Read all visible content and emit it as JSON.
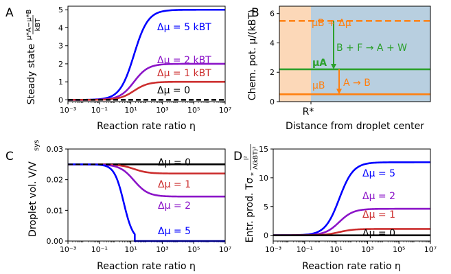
{
  "chart_data": [
    {
      "panel": "A",
      "type": "line",
      "xlabel": "Reaction rate ratio η",
      "ylabel": "Steady state (μA*−μB*)/kBT",
      "xscale": "log",
      "xlim": [
        0.001,
        10000000
      ],
      "ylim": [
        -0.1,
        5.2
      ],
      "xticks": [
        "10⁻³",
        "10⁻¹",
        "10¹",
        "10³",
        "10⁵",
        "10⁷"
      ],
      "yticks": [
        "0",
        "1",
        "2",
        "3",
        "4",
        "5"
      ],
      "series": [
        {
          "name": "Δμ = 5 k_BT",
          "color": "#0000ff",
          "plateau": 5,
          "midpoint_log10": 1.2
        },
        {
          "name": "Δμ = 2 k_BT",
          "color": "#8b14c8",
          "plateau": 2,
          "midpoint_log10": 1.2
        },
        {
          "name": "Δμ = 1 k_BT",
          "color": "#cc2e2e",
          "plateau": 1,
          "midpoint_log10": 1.2
        },
        {
          "name": "Δμ = 0",
          "color": "#000000",
          "plateau": 0,
          "midpoint_log10": 1.2
        }
      ]
    },
    {
      "panel": "B",
      "type": "diagram",
      "xlabel": "Distance from droplet center",
      "ylabel": "Chem. pot. μ/(kBT)",
      "ylim": [
        0,
        6.5
      ],
      "yticks": [
        "0",
        "2",
        "4",
        "6"
      ],
      "xtick": "R*",
      "levels": {
        "muB_plus_dmu": 5.5,
        "muA": 2.2,
        "muB": 0.5
      },
      "level_labels": {
        "muB_plus_dmu": "μB + Δμ",
        "muA": "μA",
        "muB": "μB"
      },
      "reactions": [
        "B + F → A + W",
        "A → B"
      ],
      "colors": {
        "inside": "#fcd8b8",
        "outside": "#b8cfe0",
        "orange": "#ff7f0e",
        "green": "#2ca02c"
      }
    },
    {
      "panel": "C",
      "type": "line",
      "xlabel": "Reaction rate ratio η",
      "ylabel": "Droplet vol. V/Vsys",
      "xscale": "log",
      "xlim": [
        0.001,
        10000000
      ],
      "ylim": [
        0.0,
        0.03
      ],
      "xticks": [
        "10⁻³",
        "10⁻¹",
        "10¹",
        "10³",
        "10⁵",
        "10⁷"
      ],
      "yticks": [
        "0.00",
        "0.01",
        "0.02",
        "0.03"
      ],
      "start_value": 0.025,
      "series": [
        {
          "name": "Δμ = 0",
          "color": "#000000",
          "plateau": 0.025
        },
        {
          "name": "Δμ = 1",
          "color": "#cc2e2e",
          "plateau": 0.022
        },
        {
          "name": "Δμ = 2",
          "color": "#8b14c8",
          "plateau": 0.0145
        },
        {
          "name": "Δμ = 5",
          "color": "#0000ff",
          "plateau": 0.0
        }
      ]
    },
    {
      "panel": "D",
      "type": "line",
      "xlabel": "Reaction rate ratio η",
      "ylabel": "Entr. prod. Tσ* l²/Λ(kBT)²",
      "xscale": "log",
      "xlim": [
        0.001,
        10000000
      ],
      "ylim": [
        -1,
        15
      ],
      "xticks": [
        "10⁻³",
        "10⁻¹",
        "10¹",
        "10³",
        "10⁵",
        "10⁷"
      ],
      "yticks": [
        "0",
        "5",
        "10",
        "15"
      ],
      "series": [
        {
          "name": "Δμ = 5",
          "color": "#0000ff",
          "plateau": 12.7
        },
        {
          "name": "Δμ = 2",
          "color": "#8b14c8",
          "plateau": 4.6
        },
        {
          "name": "Δμ = 1",
          "color": "#cc2e2e",
          "plateau": 1.1
        },
        {
          "name": "Δμ = 0",
          "color": "#000000",
          "plateau": 0
        }
      ]
    }
  ],
  "text": {
    "panelA": "A",
    "panelB": "B",
    "panelC": "C",
    "panelD": "D",
    "xlabel": "Reaction rate ratio η",
    "xlabelB": "Distance from droplet center",
    "ylabelA": "Steady state",
    "ylabelA_frac_num": "μ*A−μ*B",
    "ylabelA_frac_den": "kBT",
    "ylabelB": "Chem. pot. μ/(kBT)",
    "ylabelC": "Droplet vol. V/V",
    "ylabelC_sub": "sys",
    "ylabelD": "Entr. prod. Tσ",
    "ylabelD_sub": "*",
    "ylabelD_frac_num": "l²",
    "ylabelD_frac_den": "Λ(kBT)²",
    "tickR": "R*",
    "A_labels": [
      "Δμ = 5 kBT",
      "Δμ = 2 kBT",
      "Δμ = 1 kBT",
      "Δμ = 0"
    ],
    "C_labels": [
      "Δμ = 0",
      "Δμ = 1",
      "Δμ = 2",
      "Δμ = 5"
    ],
    "D_labels": [
      "Δμ = 5",
      "Δμ = 2",
      "Δμ = 1",
      "Δμ = 0"
    ],
    "B_muBdmu": "μB + Δμ",
    "B_muA": "μA",
    "B_muB": "μB",
    "B_r1": "B + F → A + W",
    "B_r2": "A → B"
  }
}
